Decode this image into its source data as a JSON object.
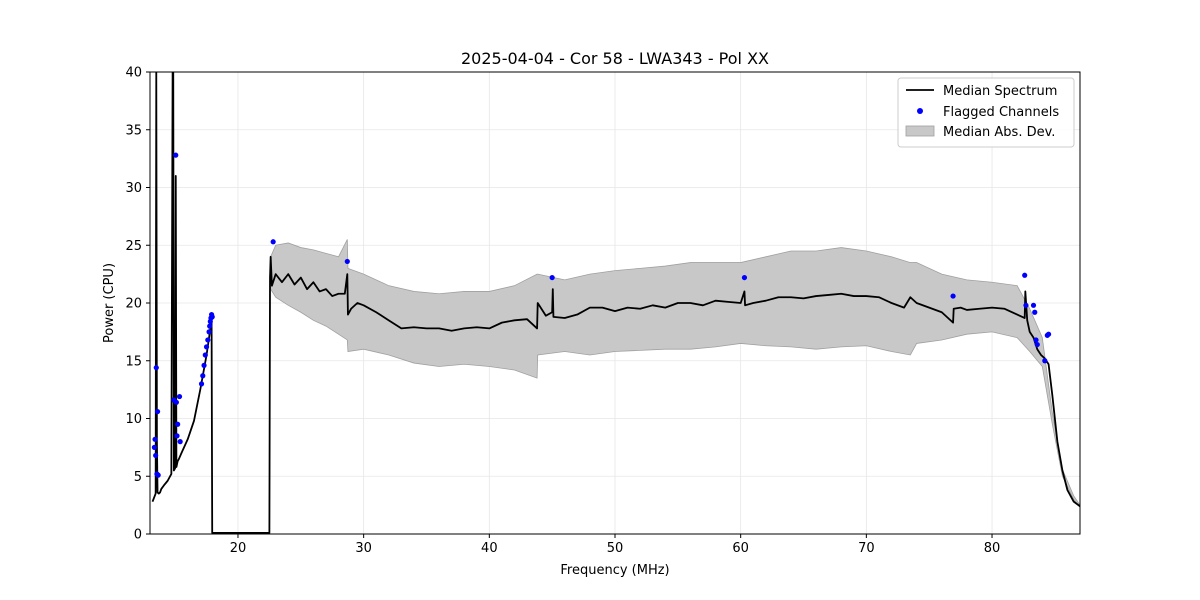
{
  "chart_data": {
    "type": "line",
    "title": "2025-04-04 - Cor 58 - LWA343 - Pol XX",
    "xlabel": "Frequency (MHz)",
    "ylabel": "Power (CPU)",
    "xlim": [
      13,
      87
    ],
    "ylim": [
      0,
      40
    ],
    "xticks": [
      20,
      30,
      40,
      50,
      60,
      70,
      80
    ],
    "yticks": [
      0,
      5,
      10,
      15,
      20,
      25,
      30,
      35,
      40
    ],
    "grid": true,
    "legend_position": "top-right",
    "colors": {
      "median": "#000000",
      "flagged": "#0000ff",
      "mad_fill": "#c8c8c8",
      "mad_edge": "#a0a0a0",
      "grid": "#e6e6e6"
    },
    "series": [
      {
        "name": "Median Spectrum",
        "kind": "line",
        "x": [
          13.2,
          13.45,
          13.5,
          13.55,
          13.6,
          13.7,
          13.8,
          13.9,
          14.1,
          14.4,
          14.7,
          14.8,
          14.85,
          14.9,
          15.0,
          15.05,
          15.1,
          15.2,
          15.3,
          15.5,
          16.0,
          16.5,
          17.0,
          17.5,
          17.9,
          17.95,
          18.0,
          22.5,
          22.55,
          22.6,
          22.7,
          23.0,
          23.5,
          24.0,
          24.5,
          25.0,
          25.5,
          26.0,
          26.5,
          27.0,
          27.5,
          28.0,
          28.5,
          28.7,
          28.75,
          29.0,
          29.5,
          30.0,
          31.0,
          32.0,
          33.0,
          34.0,
          35.0,
          36.0,
          37.0,
          38.0,
          39.0,
          40.0,
          41.0,
          42.0,
          43.0,
          43.8,
          43.85,
          44.5,
          45.0,
          45.05,
          45.1,
          46.0,
          47.0,
          48.0,
          49.0,
          50.0,
          51.0,
          52.0,
          53.0,
          54.0,
          55.0,
          56.0,
          57.0,
          58.0,
          59.0,
          60.0,
          60.3,
          60.35,
          61.0,
          62.0,
          63.0,
          64.0,
          65.0,
          66.0,
          67.0,
          68.0,
          69.0,
          70.0,
          71.0,
          72.0,
          73.0,
          73.5,
          74.0,
          75.0,
          76.0,
          76.9,
          76.95,
          77.5,
          78.0,
          79.0,
          80.0,
          81.0,
          82.0,
          82.6,
          82.65,
          82.8,
          83.0,
          83.3,
          83.6,
          83.9,
          84.2,
          84.5,
          84.8,
          85.2,
          85.6,
          86.0,
          86.5,
          87.0
        ],
        "y": [
          2.8,
          3.5,
          40.0,
          8.0,
          3.6,
          3.5,
          3.6,
          3.9,
          4.2,
          4.6,
          5.2,
          40.0,
          40.0,
          5.5,
          5.7,
          31.0,
          5.8,
          6.3,
          6.5,
          7.0,
          8.2,
          9.8,
          12.5,
          15.5,
          18.5,
          0.1,
          0.1,
          0.1,
          22.2,
          24.0,
          21.5,
          22.5,
          21.8,
          22.5,
          21.6,
          22.2,
          21.2,
          21.8,
          21.0,
          21.2,
          20.6,
          20.8,
          20.8,
          22.5,
          19.0,
          19.5,
          20.0,
          19.8,
          19.2,
          18.5,
          17.8,
          17.9,
          17.8,
          17.8,
          17.6,
          17.8,
          17.9,
          17.8,
          18.3,
          18.5,
          18.6,
          17.8,
          20.0,
          18.9,
          19.2,
          21.2,
          18.8,
          18.7,
          19.0,
          19.6,
          19.6,
          19.3,
          19.6,
          19.5,
          19.8,
          19.6,
          20.0,
          20.0,
          19.8,
          20.2,
          20.1,
          20.0,
          21.0,
          19.8,
          20.0,
          20.2,
          20.5,
          20.5,
          20.4,
          20.6,
          20.7,
          20.8,
          20.6,
          20.6,
          20.5,
          20.0,
          19.6,
          20.5,
          20.0,
          19.6,
          19.2,
          18.3,
          19.5,
          19.6,
          19.4,
          19.5,
          19.6,
          19.5,
          19.0,
          18.7,
          21.0,
          18.5,
          17.5,
          17.0,
          16.0,
          15.5,
          15.2,
          14.7,
          12.0,
          8.0,
          5.5,
          3.8,
          2.8,
          2.4
        ]
      },
      {
        "name": "Median Abs. Dev.",
        "kind": "band",
        "x": [
          22.6,
          23.0,
          24.0,
          25.0,
          26.0,
          27.0,
          28.0,
          28.7,
          28.75,
          30.0,
          32.0,
          34.0,
          36.0,
          38.0,
          40.0,
          42.0,
          43.8,
          43.85,
          46.0,
          48.0,
          50.0,
          52.0,
          54.0,
          56.0,
          58.0,
          60.0,
          62.0,
          64.0,
          66.0,
          68.0,
          70.0,
          72.0,
          73.5,
          74.0,
          76.0,
          78.0,
          80.0,
          82.0,
          83.0,
          84.0,
          84.8,
          85.6,
          86.5,
          87.0
        ],
        "lower": [
          21.2,
          20.5,
          19.8,
          19.2,
          18.5,
          18.0,
          17.3,
          16.8,
          15.8,
          16.0,
          15.5,
          14.8,
          14.5,
          14.7,
          14.5,
          14.2,
          13.5,
          15.5,
          15.8,
          15.5,
          15.8,
          15.9,
          16.0,
          16.0,
          16.2,
          16.5,
          16.3,
          16.2,
          16.0,
          16.2,
          16.3,
          15.8,
          15.5,
          16.5,
          16.8,
          17.3,
          17.5,
          17.0,
          15.8,
          14.5,
          9.5,
          5.0,
          3.0,
          2.3
        ],
        "upper": [
          24.0,
          25.0,
          25.2,
          24.8,
          24.6,
          24.3,
          24.0,
          25.5,
          23.0,
          22.5,
          21.5,
          21.0,
          20.8,
          21.0,
          21.0,
          21.5,
          22.5,
          22.5,
          22.0,
          22.5,
          22.8,
          23.0,
          23.2,
          23.5,
          23.5,
          23.5,
          24.0,
          24.5,
          24.5,
          24.8,
          24.5,
          24.0,
          23.5,
          23.5,
          22.5,
          22.0,
          21.8,
          21.5,
          19.5,
          17.0,
          10.5,
          5.6,
          3.3,
          2.5
        ]
      },
      {
        "name": "Flagged Channels",
        "kind": "scatter",
        "x": [
          13.35,
          13.4,
          13.45,
          13.5,
          13.55,
          13.6,
          13.65,
          14.9,
          15.05,
          15.1,
          15.15,
          15.2,
          15.35,
          15.4,
          17.1,
          17.2,
          17.3,
          17.4,
          17.5,
          17.6,
          17.7,
          17.75,
          17.8,
          17.85,
          17.9,
          17.95,
          22.8,
          28.7,
          45.0,
          60.3,
          76.9,
          82.6,
          82.7,
          83.3,
          83.4,
          83.5,
          83.6,
          84.2,
          84.4,
          84.5
        ],
        "y": [
          7.5,
          8.2,
          6.8,
          14.4,
          5.2,
          10.6,
          5.1,
          11.6,
          32.8,
          11.4,
          8.5,
          9.5,
          11.9,
          8.0,
          13.0,
          13.7,
          14.6,
          15.5,
          16.2,
          16.8,
          17.5,
          18.0,
          18.4,
          18.7,
          19.0,
          18.8,
          25.3,
          23.6,
          22.2,
          22.2,
          20.6,
          22.4,
          19.8,
          19.8,
          19.2,
          16.8,
          16.4,
          15.0,
          17.2,
          17.3
        ]
      }
    ]
  }
}
